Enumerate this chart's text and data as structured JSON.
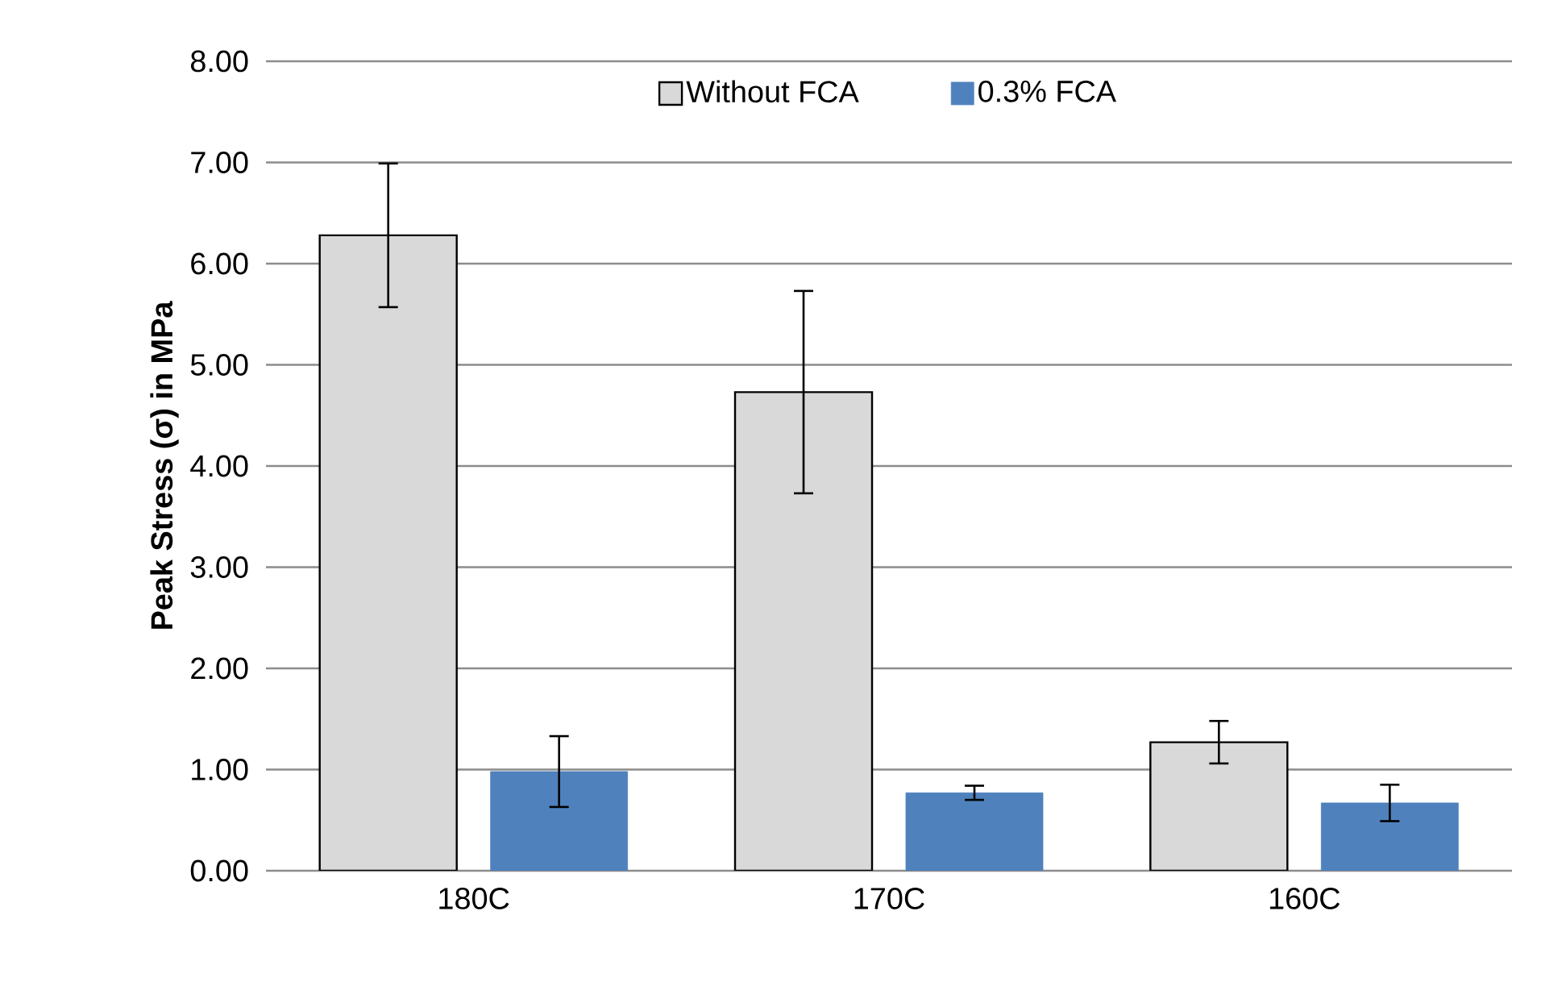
{
  "chart_data": {
    "type": "bar",
    "ylabel": "Peak Stress (σ) in MPa",
    "categories": [
      "180C",
      "170C",
      "160C"
    ],
    "series": [
      {
        "name": "Without FCA",
        "color": "#d9d9d9",
        "values": [
          6.28,
          4.73,
          1.27
        ],
        "errors": [
          0.71,
          1.0,
          0.21
        ]
      },
      {
        "name": "0.3% FCA",
        "color": "#4f81bd",
        "values": [
          0.98,
          0.77,
          0.67
        ],
        "errors": [
          0.35,
          0.07,
          0.18
        ]
      }
    ],
    "ylim": [
      0,
      8
    ],
    "yticks": [
      {
        "value": 0,
        "label": "0.00"
      },
      {
        "value": 1,
        "label": "1.00"
      },
      {
        "value": 2,
        "label": "2.00"
      },
      {
        "value": 3,
        "label": "3.00"
      },
      {
        "value": 4,
        "label": "4.00"
      },
      {
        "value": 5,
        "label": "5.00"
      },
      {
        "value": 6,
        "label": "6.00"
      },
      {
        "value": 7,
        "label": "7.00"
      },
      {
        "value": 8,
        "label": "8.00"
      }
    ],
    "grid": "y",
    "legend": "top"
  }
}
